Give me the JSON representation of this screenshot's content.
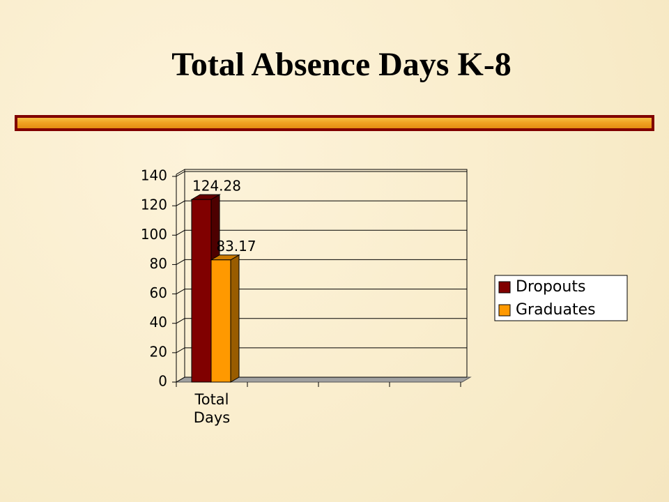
{
  "chart_data": {
    "type": "bar",
    "title": "Total Absence Days K-8",
    "categories": [
      "Total Days",
      null,
      null,
      null
    ],
    "series": [
      {
        "name": "Dropouts",
        "color": "#800000",
        "values": [
          124.28,
          null,
          null,
          null
        ]
      },
      {
        "name": "Graduates",
        "color": "#ff9900",
        "values": [
          83.17,
          null,
          null,
          null
        ]
      }
    ],
    "ylim": [
      0,
      140
    ],
    "yticks": [
      0,
      20,
      40,
      60,
      80,
      100,
      120,
      140
    ],
    "grid": true,
    "legend": "right"
  }
}
